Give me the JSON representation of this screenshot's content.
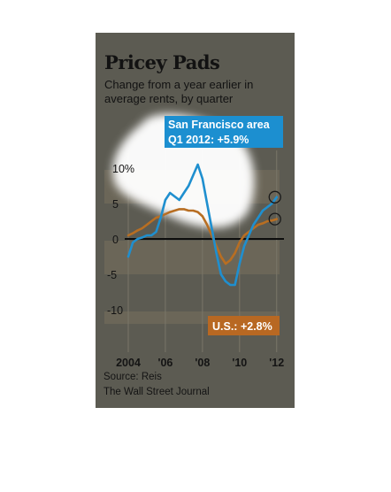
{
  "title": "Pricey Pads",
  "subtitle": "Change from a year earlier in average rents, by quarter",
  "source": "Source: Reis",
  "brand": "The Wall Street Journal",
  "colors": {
    "panel": "#5c5b52",
    "band": "#6b6658",
    "sf_line": "#1f8fcf",
    "us_line": "#b86e22",
    "sf_label_bg": "#1c8fd0",
    "us_label_bg": "#b86822",
    "spotlight": "#ffffff"
  },
  "chart_data": {
    "type": "line",
    "title": "Pricey Pads",
    "subtitle": "Change from a year earlier in average rents, by quarter",
    "ylabel": "",
    "xlabel": "",
    "ylim": [
      -12,
      12
    ],
    "xlim": [
      2004,
      2012.25
    ],
    "y_ticks": [
      {
        "value": 10,
        "label": "10%"
      },
      {
        "value": 5,
        "label": "5"
      },
      {
        "value": 0,
        "label": "0"
      },
      {
        "value": -5,
        "label": "-5"
      },
      {
        "value": -10,
        "label": "-10"
      }
    ],
    "x_ticks": [
      {
        "value": 2004,
        "label": "2004"
      },
      {
        "value": 2006,
        "label": "'06"
      },
      {
        "value": 2008,
        "label": "'08"
      },
      {
        "value": 2010,
        "label": "'10"
      },
      {
        "value": 2012,
        "label": "'12"
      }
    ],
    "series": [
      {
        "name": "San Francisco area",
        "callout": [
          "San Francisco area",
          "Q1 2012: +5.9%"
        ],
        "color": "#1f8fcf",
        "x": [
          2004.0,
          2004.25,
          2004.5,
          2004.75,
          2005.0,
          2005.25,
          2005.5,
          2005.75,
          2006.0,
          2006.25,
          2006.5,
          2006.75,
          2007.0,
          2007.25,
          2007.5,
          2007.75,
          2008.0,
          2008.25,
          2008.5,
          2008.75,
          2009.0,
          2009.25,
          2009.5,
          2009.75,
          2010.0,
          2010.25,
          2010.5,
          2010.75,
          2011.0,
          2011.25,
          2011.5,
          2011.75,
          2012.0
        ],
        "y": [
          -2.5,
          -0.5,
          0.0,
          0.2,
          0.5,
          0.5,
          1.0,
          3.0,
          5.5,
          6.5,
          6.0,
          5.5,
          6.5,
          7.5,
          9.0,
          10.5,
          8.5,
          5.0,
          1.5,
          -2.0,
          -5.0,
          -6.0,
          -6.5,
          -6.5,
          -3.5,
          -1.0,
          0.5,
          2.0,
          3.0,
          4.0,
          4.5,
          5.0,
          5.9
        ]
      },
      {
        "name": "U.S.",
        "callout": [
          "U.S.: +2.8%"
        ],
        "color": "#b86e22",
        "x": [
          2004.0,
          2004.25,
          2004.5,
          2004.75,
          2005.0,
          2005.25,
          2005.5,
          2005.75,
          2006.0,
          2006.25,
          2006.5,
          2006.75,
          2007.0,
          2007.25,
          2007.5,
          2007.75,
          2008.0,
          2008.25,
          2008.5,
          2008.75,
          2009.0,
          2009.25,
          2009.5,
          2009.75,
          2010.0,
          2010.25,
          2010.5,
          2010.75,
          2011.0,
          2011.25,
          2011.5,
          2011.75,
          2012.0
        ],
        "y": [
          0.5,
          0.8,
          1.2,
          1.5,
          2.0,
          2.5,
          3.0,
          3.2,
          3.5,
          3.8,
          4.0,
          4.2,
          4.2,
          4.0,
          4.0,
          3.8,
          3.2,
          2.0,
          0.5,
          -1.0,
          -2.5,
          -3.5,
          -3.0,
          -2.0,
          -0.5,
          0.5,
          1.0,
          1.5,
          2.0,
          2.2,
          2.5,
          2.6,
          2.8
        ]
      }
    ],
    "grid": true,
    "legend": "none"
  }
}
